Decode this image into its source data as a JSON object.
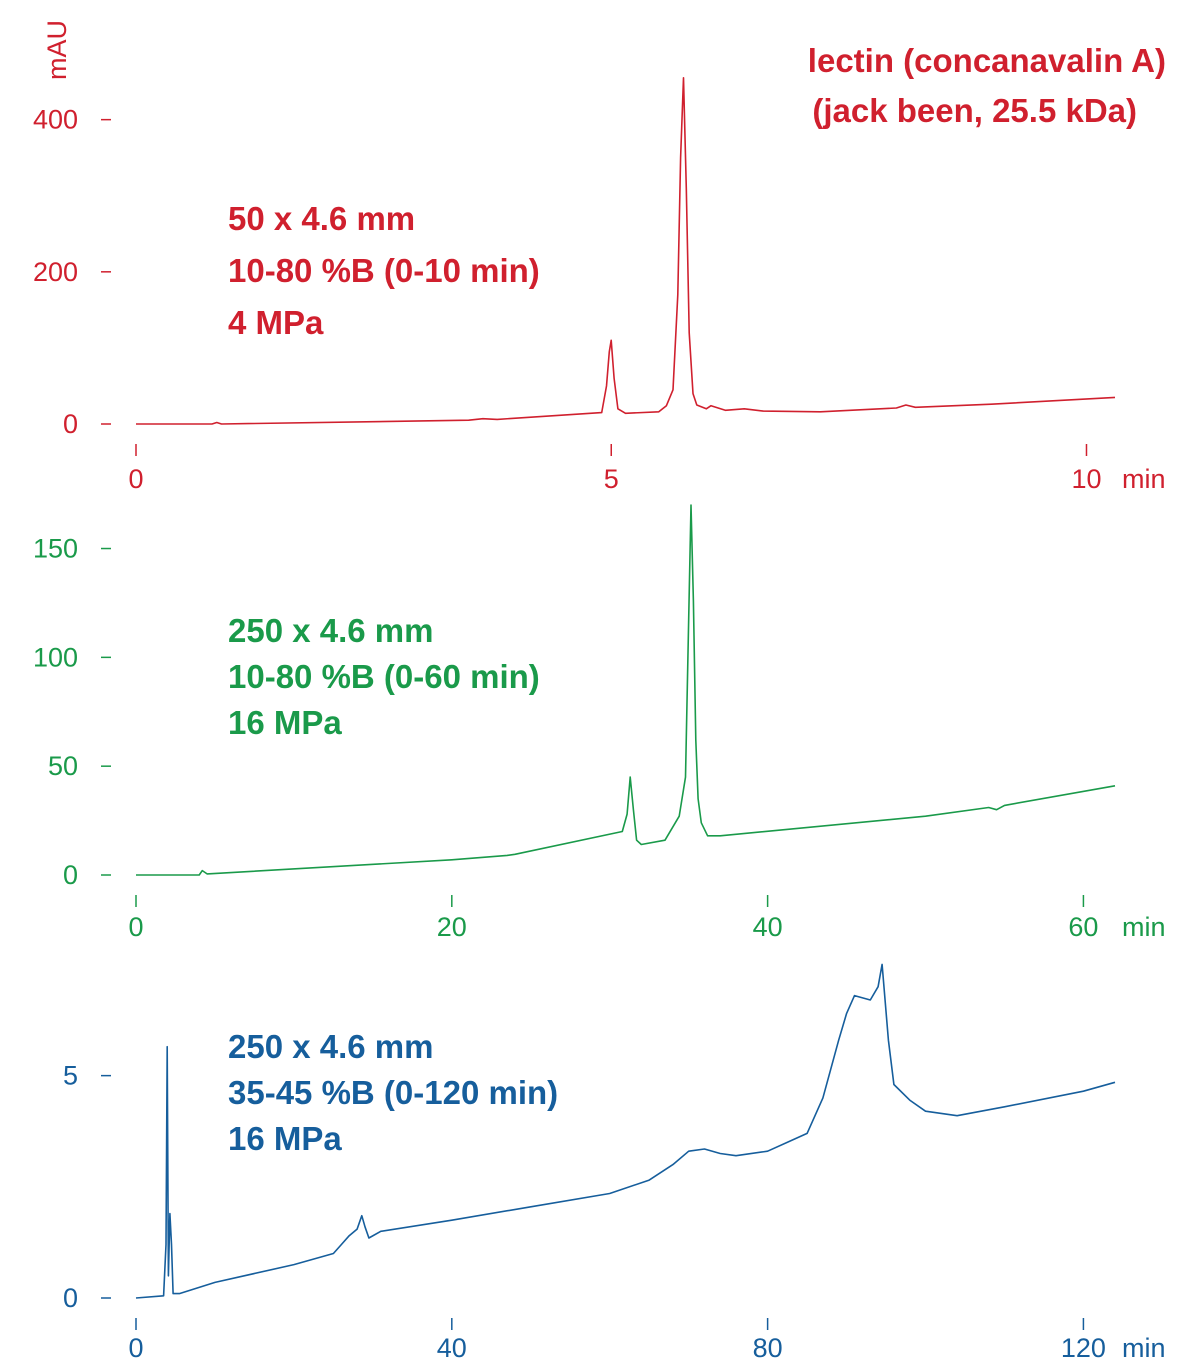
{
  "colors": {
    "red": "#d0202e",
    "green": "#1a9a4a",
    "blue": "#165e9c"
  },
  "y_unit_label": "mAU",
  "title_lines": [
    "lectin (concanavalin A)",
    "(jack been, 25.5 kDa)"
  ],
  "chart_data": [
    {
      "type": "line",
      "x_unit": "min",
      "y_unit": "mAU",
      "xlim": [
        0,
        10.3
      ],
      "ylim": [
        0,
        460
      ],
      "x_ticks": [
        0,
        5,
        10
      ],
      "x_tick_labels": [
        "0",
        "5",
        "10"
      ],
      "y_ticks": [
        0,
        200,
        400
      ],
      "y_tick_labels": [
        "0",
        "200",
        "400"
      ],
      "info_lines": [
        "50 x 4.6 mm",
        "10-80 %B (0-10 min)",
        "4 MPa"
      ],
      "series": [
        {
          "x": [
            0,
            0.8,
            0.85,
            0.9,
            3.5,
            3.65,
            3.8,
            4.9,
            4.95,
            4.98,
            5.0,
            5.03,
            5.07,
            5.15,
            5.5,
            5.58,
            5.65,
            5.7,
            5.73,
            5.76,
            5.79,
            5.82,
            5.86,
            5.9,
            6.0,
            6.05,
            6.2,
            6.4,
            6.6,
            7.2,
            8.0,
            8.1,
            8.2,
            9.0,
            10.3
          ],
          "y": [
            0,
            0,
            2,
            0,
            5,
            7,
            6,
            15,
            50,
            95,
            110,
            60,
            20,
            14,
            16,
            24,
            45,
            170,
            350,
            455,
            310,
            120,
            40,
            25,
            20,
            24,
            18,
            20,
            17,
            16,
            21,
            25,
            22,
            26,
            35
          ]
        }
      ]
    },
    {
      "type": "line",
      "x_unit": "min",
      "y_unit": "mAU",
      "xlim": [
        0,
        62
      ],
      "ylim": [
        0,
        170
      ],
      "x_ticks": [
        0,
        20,
        40,
        60
      ],
      "x_tick_labels": [
        "0",
        "20",
        "40",
        "60"
      ],
      "y_ticks": [
        0,
        50,
        100,
        150
      ],
      "y_tick_labels": [
        "0",
        "50",
        "100",
        "150"
      ],
      "info_lines": [
        "250 x 4.6 mm",
        "10-80 %B (0-60 min)",
        "16 MPa"
      ],
      "series": [
        {
          "x": [
            0,
            4,
            4.2,
            4.5,
            20,
            23.5,
            24,
            30.8,
            31.1,
            31.3,
            31.5,
            31.7,
            32.0,
            33.5,
            34.4,
            34.8,
            35.0,
            35.15,
            35.3,
            35.45,
            35.6,
            35.8,
            36.2,
            37.0,
            50,
            54,
            54.5,
            55,
            62
          ],
          "y": [
            0,
            0,
            2,
            0.5,
            7,
            9,
            9.5,
            20,
            28,
            45,
            30,
            16,
            14,
            16,
            27,
            45,
            118,
            170,
            126,
            62,
            35,
            24,
            18,
            18,
            27,
            31,
            30,
            32,
            41
          ]
        }
      ]
    },
    {
      "type": "line",
      "x_unit": "min",
      "y_unit": "mAU",
      "xlim": [
        0,
        124
      ],
      "ylim": [
        0,
        7.6
      ],
      "x_ticks": [
        0,
        40,
        80,
        120
      ],
      "x_tick_labels": [
        "0",
        "40",
        "80",
        "120"
      ],
      "y_ticks": [
        0,
        5
      ],
      "y_tick_labels": [
        "0",
        "5"
      ],
      "info_lines": [
        "250 x 4.6 mm",
        "35-45 %B (0-120 min)",
        "16 MPa"
      ],
      "series": [
        {
          "x": [
            0,
            3.5,
            3.8,
            3.95,
            4.1,
            4.3,
            4.5,
            4.7,
            5.5,
            10,
            20,
            25,
            26,
            27,
            28,
            28.6,
            29,
            29.5,
            31,
            40,
            50,
            60,
            65,
            68,
            70,
            72,
            74,
            76,
            80,
            85,
            87,
            89,
            90,
            91,
            93,
            94,
            94.5,
            95.3,
            96,
            98,
            100,
            104,
            110,
            120,
            124
          ],
          "y": [
            0,
            0.05,
            1.2,
            5.65,
            0.5,
            1.9,
            1.2,
            0.1,
            0.1,
            0.35,
            0.75,
            1.0,
            1.2,
            1.4,
            1.55,
            1.85,
            1.6,
            1.35,
            1.5,
            1.75,
            2.05,
            2.35,
            2.65,
            3.0,
            3.3,
            3.35,
            3.25,
            3.2,
            3.3,
            3.7,
            4.5,
            5.8,
            6.4,
            6.8,
            6.7,
            7.0,
            7.5,
            5.8,
            4.8,
            4.45,
            4.2,
            4.1,
            4.3,
            4.65,
            4.85
          ]
        }
      ]
    }
  ]
}
